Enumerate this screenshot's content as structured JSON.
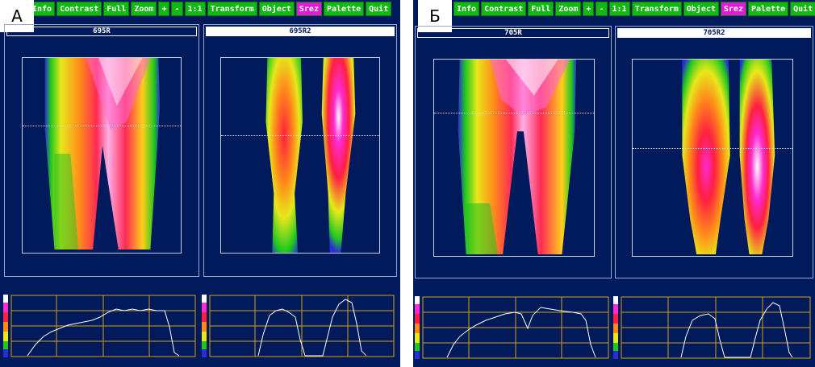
{
  "panels": [
    {
      "label": "А",
      "toolbar": [
        "Info",
        "Contrast",
        "Full",
        "Zoom",
        "+",
        "-",
        "1:1",
        "Transform",
        "Object",
        "Srez",
        "Palette",
        "Quit"
      ],
      "active_button": "Srez",
      "views": [
        {
          "title": "695R"
        },
        {
          "title": "695R2"
        }
      ]
    },
    {
      "label": "Б",
      "toolbar": [
        "Info",
        "Contrast",
        "Full",
        "Zoom",
        "+",
        "-",
        "1:1",
        "Transform",
        "Object",
        "Srez",
        "Palette",
        "Quit"
      ],
      "active_button": "Srez",
      "views": [
        {
          "title": "705R"
        },
        {
          "title": "705R2"
        }
      ]
    }
  ],
  "colors": {
    "background": "#001a5c",
    "button": "#14b814",
    "button_active": "#e01ad6",
    "grid": "#d4a017",
    "profile": "#ffffff"
  },
  "icons": [
    "palette-bar-icon"
  ]
}
